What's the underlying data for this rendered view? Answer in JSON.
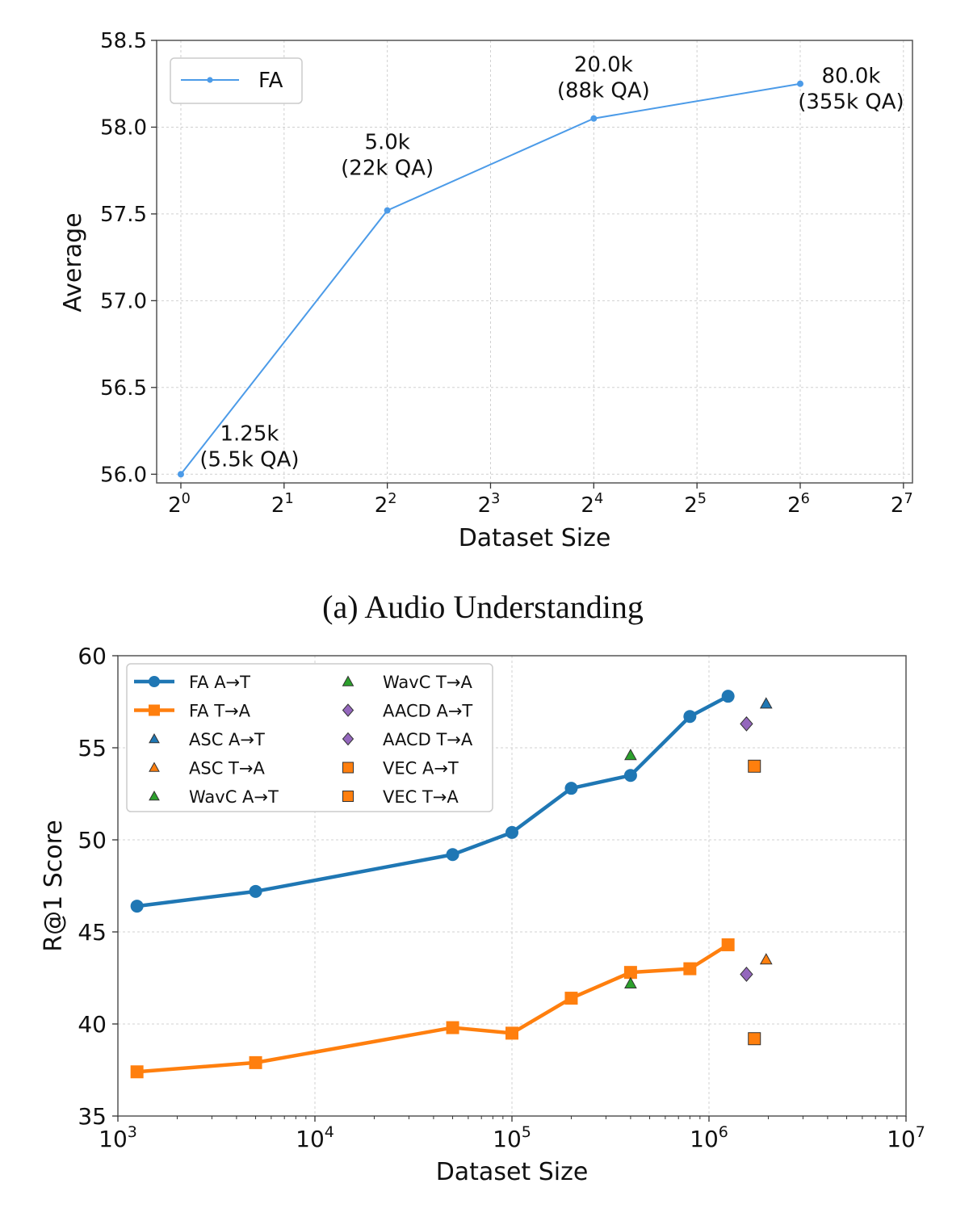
{
  "caption_a": "(a) Audio Understanding",
  "chart_data": [
    {
      "type": "line",
      "xlabel": "Dataset Size",
      "ylabel": "Average",
      "x_scale": "log2",
      "xlim": [
        0.85,
        136
      ],
      "ylim": [
        55.95,
        58.5
      ],
      "x_ticks": [
        {
          "value": 1,
          "base": "2",
          "exp": "0"
        },
        {
          "value": 2,
          "base": "2",
          "exp": "1"
        },
        {
          "value": 4,
          "base": "2",
          "exp": "2"
        },
        {
          "value": 8,
          "base": "2",
          "exp": "3"
        },
        {
          "value": 16,
          "base": "2",
          "exp": "4"
        },
        {
          "value": 32,
          "base": "2",
          "exp": "5"
        },
        {
          "value": 64,
          "base": "2",
          "exp": "6"
        },
        {
          "value": 128,
          "base": "2",
          "exp": "7"
        }
      ],
      "y_ticks": [
        "56.0",
        "56.5",
        "57.0",
        "57.5",
        "58.0",
        "58.5"
      ],
      "grid": true,
      "legend_position": "top-left",
      "series": [
        {
          "name": "FA",
          "color": "#4c9be8",
          "x": [
            1,
            4,
            16,
            64
          ],
          "y": [
            56.0,
            57.52,
            58.05,
            58.25
          ],
          "point_labels": [
            [
              "1.25k",
              "(5.5k QA)"
            ],
            [
              "5.0k",
              "(22k QA)"
            ],
            [
              "20.0k",
              "(88k QA)"
            ],
            [
              "80.0k",
              "(355k QA)"
            ]
          ]
        }
      ]
    },
    {
      "type": "line",
      "xlabel": "Dataset Size",
      "ylabel": "R@1 Score",
      "x_scale": "log10",
      "xlim": [
        1000,
        10000000
      ],
      "ylim": [
        35,
        60
      ],
      "x_ticks": [
        {
          "value": 1000,
          "base": "10",
          "exp": "3"
        },
        {
          "value": 10000,
          "base": "10",
          "exp": "4"
        },
        {
          "value": 100000,
          "base": "10",
          "exp": "5"
        },
        {
          "value": 1000000,
          "base": "10",
          "exp": "6"
        },
        {
          "value": 10000000,
          "base": "10",
          "exp": "7"
        }
      ],
      "y_ticks": [
        "35",
        "40",
        "45",
        "50",
        "55",
        "60"
      ],
      "grid": true,
      "legend_position": "top-left",
      "series": [
        {
          "name": "FA A→T",
          "color": "#1f77b4",
          "marker": "circle",
          "connected": true,
          "x": [
            1250,
            5000,
            50000,
            100000,
            200000,
            400000,
            800000,
            1250000
          ],
          "y": [
            46.4,
            47.2,
            49.2,
            50.4,
            52.8,
            53.5,
            56.7,
            57.8
          ]
        },
        {
          "name": "FA T→A",
          "color": "#ff7f0e",
          "marker": "square",
          "connected": true,
          "x": [
            1250,
            5000,
            50000,
            100000,
            200000,
            400000,
            800000,
            1250000
          ],
          "y": [
            37.4,
            37.9,
            39.8,
            39.5,
            41.4,
            42.8,
            43.0,
            44.3
          ]
        },
        {
          "name": "ASC A→T",
          "color": "#1f77b4",
          "marker": "triangle",
          "connected": false,
          "x": [
            1950000
          ],
          "y": [
            57.4
          ]
        },
        {
          "name": "ASC T→A",
          "color": "#ff7f0e",
          "marker": "triangle",
          "connected": false,
          "x": [
            1950000
          ],
          "y": [
            43.5
          ]
        },
        {
          "name": "WavC A→T",
          "color": "#2ca02c",
          "marker": "triangle",
          "connected": false,
          "x": [
            400000
          ],
          "y": [
            54.6
          ]
        },
        {
          "name": "WavC T→A",
          "color": "#2ca02c",
          "marker": "triangle",
          "connected": false,
          "x": [
            400000
          ],
          "y": [
            42.2
          ]
        },
        {
          "name": "AACD A→T",
          "color": "#9467bd",
          "marker": "diamond",
          "connected": false,
          "x": [
            1550000
          ],
          "y": [
            56.3
          ]
        },
        {
          "name": "AACD T→A",
          "color": "#9467bd",
          "marker": "diamond",
          "connected": false,
          "x": [
            1550000
          ],
          "y": [
            42.7
          ]
        },
        {
          "name": "VEC A→T",
          "color": "#ff7f0e",
          "marker": "square",
          "connected": false,
          "x": [
            1700000
          ],
          "y": [
            54.0
          ]
        },
        {
          "name": "VEC T→A",
          "color": "#ff7f0e",
          "marker": "square",
          "connected": false,
          "x": [
            1700000
          ],
          "y": [
            39.2
          ]
        }
      ]
    }
  ]
}
